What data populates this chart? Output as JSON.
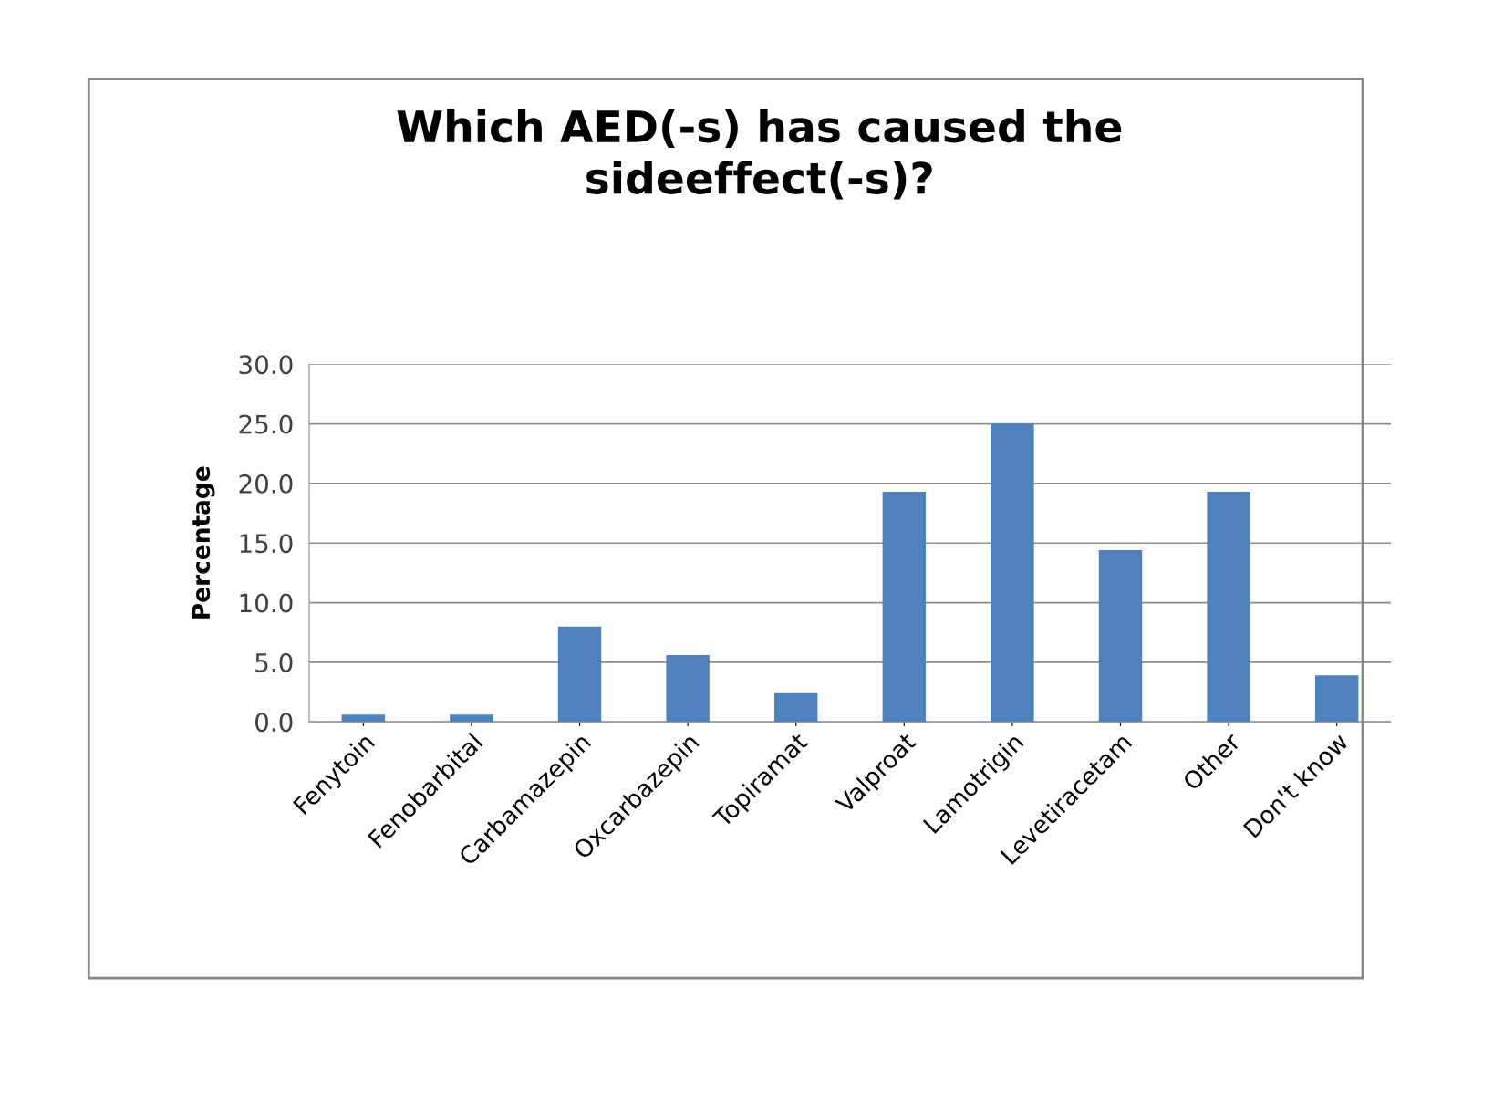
{
  "chart_data": {
    "type": "bar",
    "title": "Which AED(-s) has caused the\nsideeffect(-s)?",
    "ylabel": "Percentage",
    "categories": [
      "Fenytoin",
      "Fenobarbital",
      "Carbamazepin",
      "Oxcarbazepin",
      "Topiramat",
      "Valproat",
      "Lamotrigin",
      "Levetiracetam",
      "Other",
      "Don't know"
    ],
    "values": [
      0.6,
      0.6,
      8.0,
      5.6,
      2.4,
      19.3,
      25.0,
      14.4,
      19.3,
      3.9
    ],
    "color": "#4f81bd",
    "ylim": [
      0,
      30
    ],
    "yticks": [
      {
        "value": 0,
        "label": "0.0"
      },
      {
        "value": 5,
        "label": "5.0"
      },
      {
        "value": 10,
        "label": "10.0"
      },
      {
        "value": 15,
        "label": "15.0"
      },
      {
        "value": 20,
        "label": "20.0"
      },
      {
        "value": 25,
        "label": "25.0"
      },
      {
        "value": 30,
        "label": "30.0"
      }
    ],
    "grid": "y",
    "legend": false
  }
}
